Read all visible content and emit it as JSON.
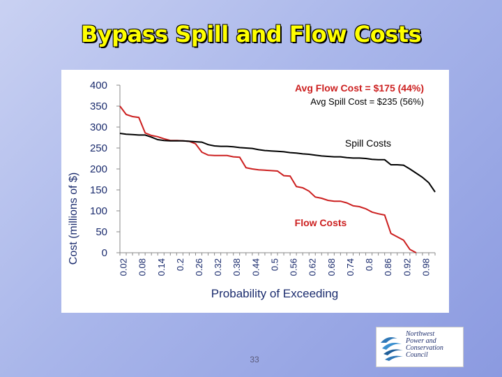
{
  "slide": {
    "title": "Bypass Spill and Flow Costs",
    "page_number": "33",
    "logo_lines": [
      "Northwest",
      "Power and",
      "Conservation",
      "Council"
    ]
  },
  "colors": {
    "title": "#ffff00",
    "flow": "#cc1f1f",
    "spill": "#000000",
    "axis_text": "#1a2b6d",
    "logo_text": "#1f2f6e"
  },
  "chart_data": {
    "type": "line",
    "title": "",
    "xlabel": "Probability of Exceeding",
    "ylabel": "Cost (millions of $)",
    "ylim": [
      0,
      400
    ],
    "yticks": [
      0,
      50,
      100,
      150,
      200,
      250,
      300,
      350,
      400
    ],
    "xlim": [
      0.0,
      1.0
    ],
    "xtick_labels": [
      "0.02",
      "0.08",
      "0.14",
      "0.2",
      "0.26",
      "0.32",
      "0.38",
      "0.44",
      "0.5",
      "0.56",
      "0.62",
      "0.68",
      "0.74",
      "0.8",
      "0.86",
      "0.92",
      "0.98"
    ],
    "series": [
      {
        "name": "Spill Costs",
        "color": "#000000",
        "x": [
          0.0,
          0.02,
          0.04,
          0.06,
          0.08,
          0.1,
          0.12,
          0.14,
          0.16,
          0.18,
          0.2,
          0.22,
          0.24,
          0.26,
          0.28,
          0.3,
          0.32,
          0.34,
          0.36,
          0.38,
          0.4,
          0.42,
          0.44,
          0.46,
          0.48,
          0.5,
          0.52,
          0.54,
          0.56,
          0.58,
          0.6,
          0.62,
          0.64,
          0.66,
          0.68,
          0.7,
          0.72,
          0.74,
          0.76,
          0.78,
          0.8,
          0.82,
          0.84,
          0.86,
          0.88,
          0.9,
          0.92,
          0.94,
          0.96,
          0.98,
          1.0
        ],
        "values": [
          285,
          283,
          282,
          281,
          281,
          276,
          270,
          268,
          267,
          267,
          267,
          266,
          265,
          264,
          258,
          255,
          254,
          254,
          253,
          251,
          250,
          249,
          246,
          244,
          243,
          242,
          241,
          239,
          238,
          236,
          235,
          233,
          231,
          230,
          229,
          229,
          227,
          226,
          226,
          225,
          223,
          222,
          222,
          210,
          210,
          209,
          200,
          190,
          180,
          167,
          145
        ]
      },
      {
        "name": "Flow Costs",
        "color": "#cc1f1f",
        "x": [
          0.0,
          0.02,
          0.04,
          0.06,
          0.08,
          0.1,
          0.12,
          0.14,
          0.16,
          0.18,
          0.2,
          0.22,
          0.24,
          0.26,
          0.28,
          0.3,
          0.32,
          0.34,
          0.36,
          0.38,
          0.4,
          0.42,
          0.44,
          0.46,
          0.48,
          0.5,
          0.52,
          0.54,
          0.56,
          0.58,
          0.6,
          0.62,
          0.64,
          0.66,
          0.68,
          0.7,
          0.72,
          0.74,
          0.76,
          0.78,
          0.8,
          0.82,
          0.84,
          0.86,
          0.88,
          0.9,
          0.92,
          0.94
        ],
        "values": [
          350,
          330,
          325,
          323,
          286,
          280,
          277,
          272,
          268,
          268,
          267,
          266,
          260,
          240,
          233,
          232,
          232,
          232,
          229,
          228,
          203,
          200,
          198,
          197,
          196,
          195,
          184,
          183,
          158,
          155,
          147,
          133,
          130,
          125,
          123,
          123,
          119,
          112,
          110,
          105,
          97,
          93,
          90,
          46,
          38,
          30,
          8,
          0
        ]
      }
    ],
    "annotations": [
      {
        "text": "Avg Flow Cost = $175 (44%)",
        "color": "#cc1f1f"
      },
      {
        "text": "Avg Spill Cost = $235 (56%)",
        "color": "#000000"
      },
      {
        "text": "Spill Costs",
        "color": "#000000"
      },
      {
        "text": "Flow Costs",
        "color": "#cc1f1f"
      }
    ]
  }
}
